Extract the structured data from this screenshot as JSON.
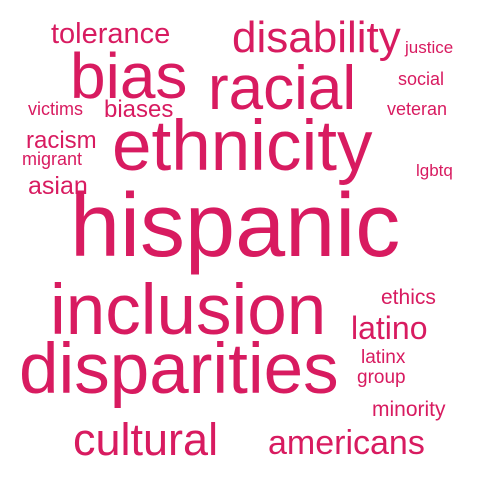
{
  "word_cloud": {
    "color": "#d81b60",
    "words": {
      "hispanic": "hispanic",
      "ethnicity": "ethnicity",
      "inclusion": "inclusion",
      "disparities": "disparities",
      "racial": "racial",
      "bias": "bias",
      "disability": "disability",
      "cultural": "cultural",
      "americans": "americans",
      "latino": "latino",
      "tolerance": "tolerance",
      "asian": "asian",
      "racism": "racism",
      "biases": "biases",
      "victims": "victims",
      "migrant": "migrant",
      "justice": "justice",
      "social": "social",
      "veteran": "veteran",
      "lgbtq": "lgbtq",
      "ethics": "ethics",
      "latinx": "latinx",
      "group": "group",
      "minority": "minority"
    }
  }
}
